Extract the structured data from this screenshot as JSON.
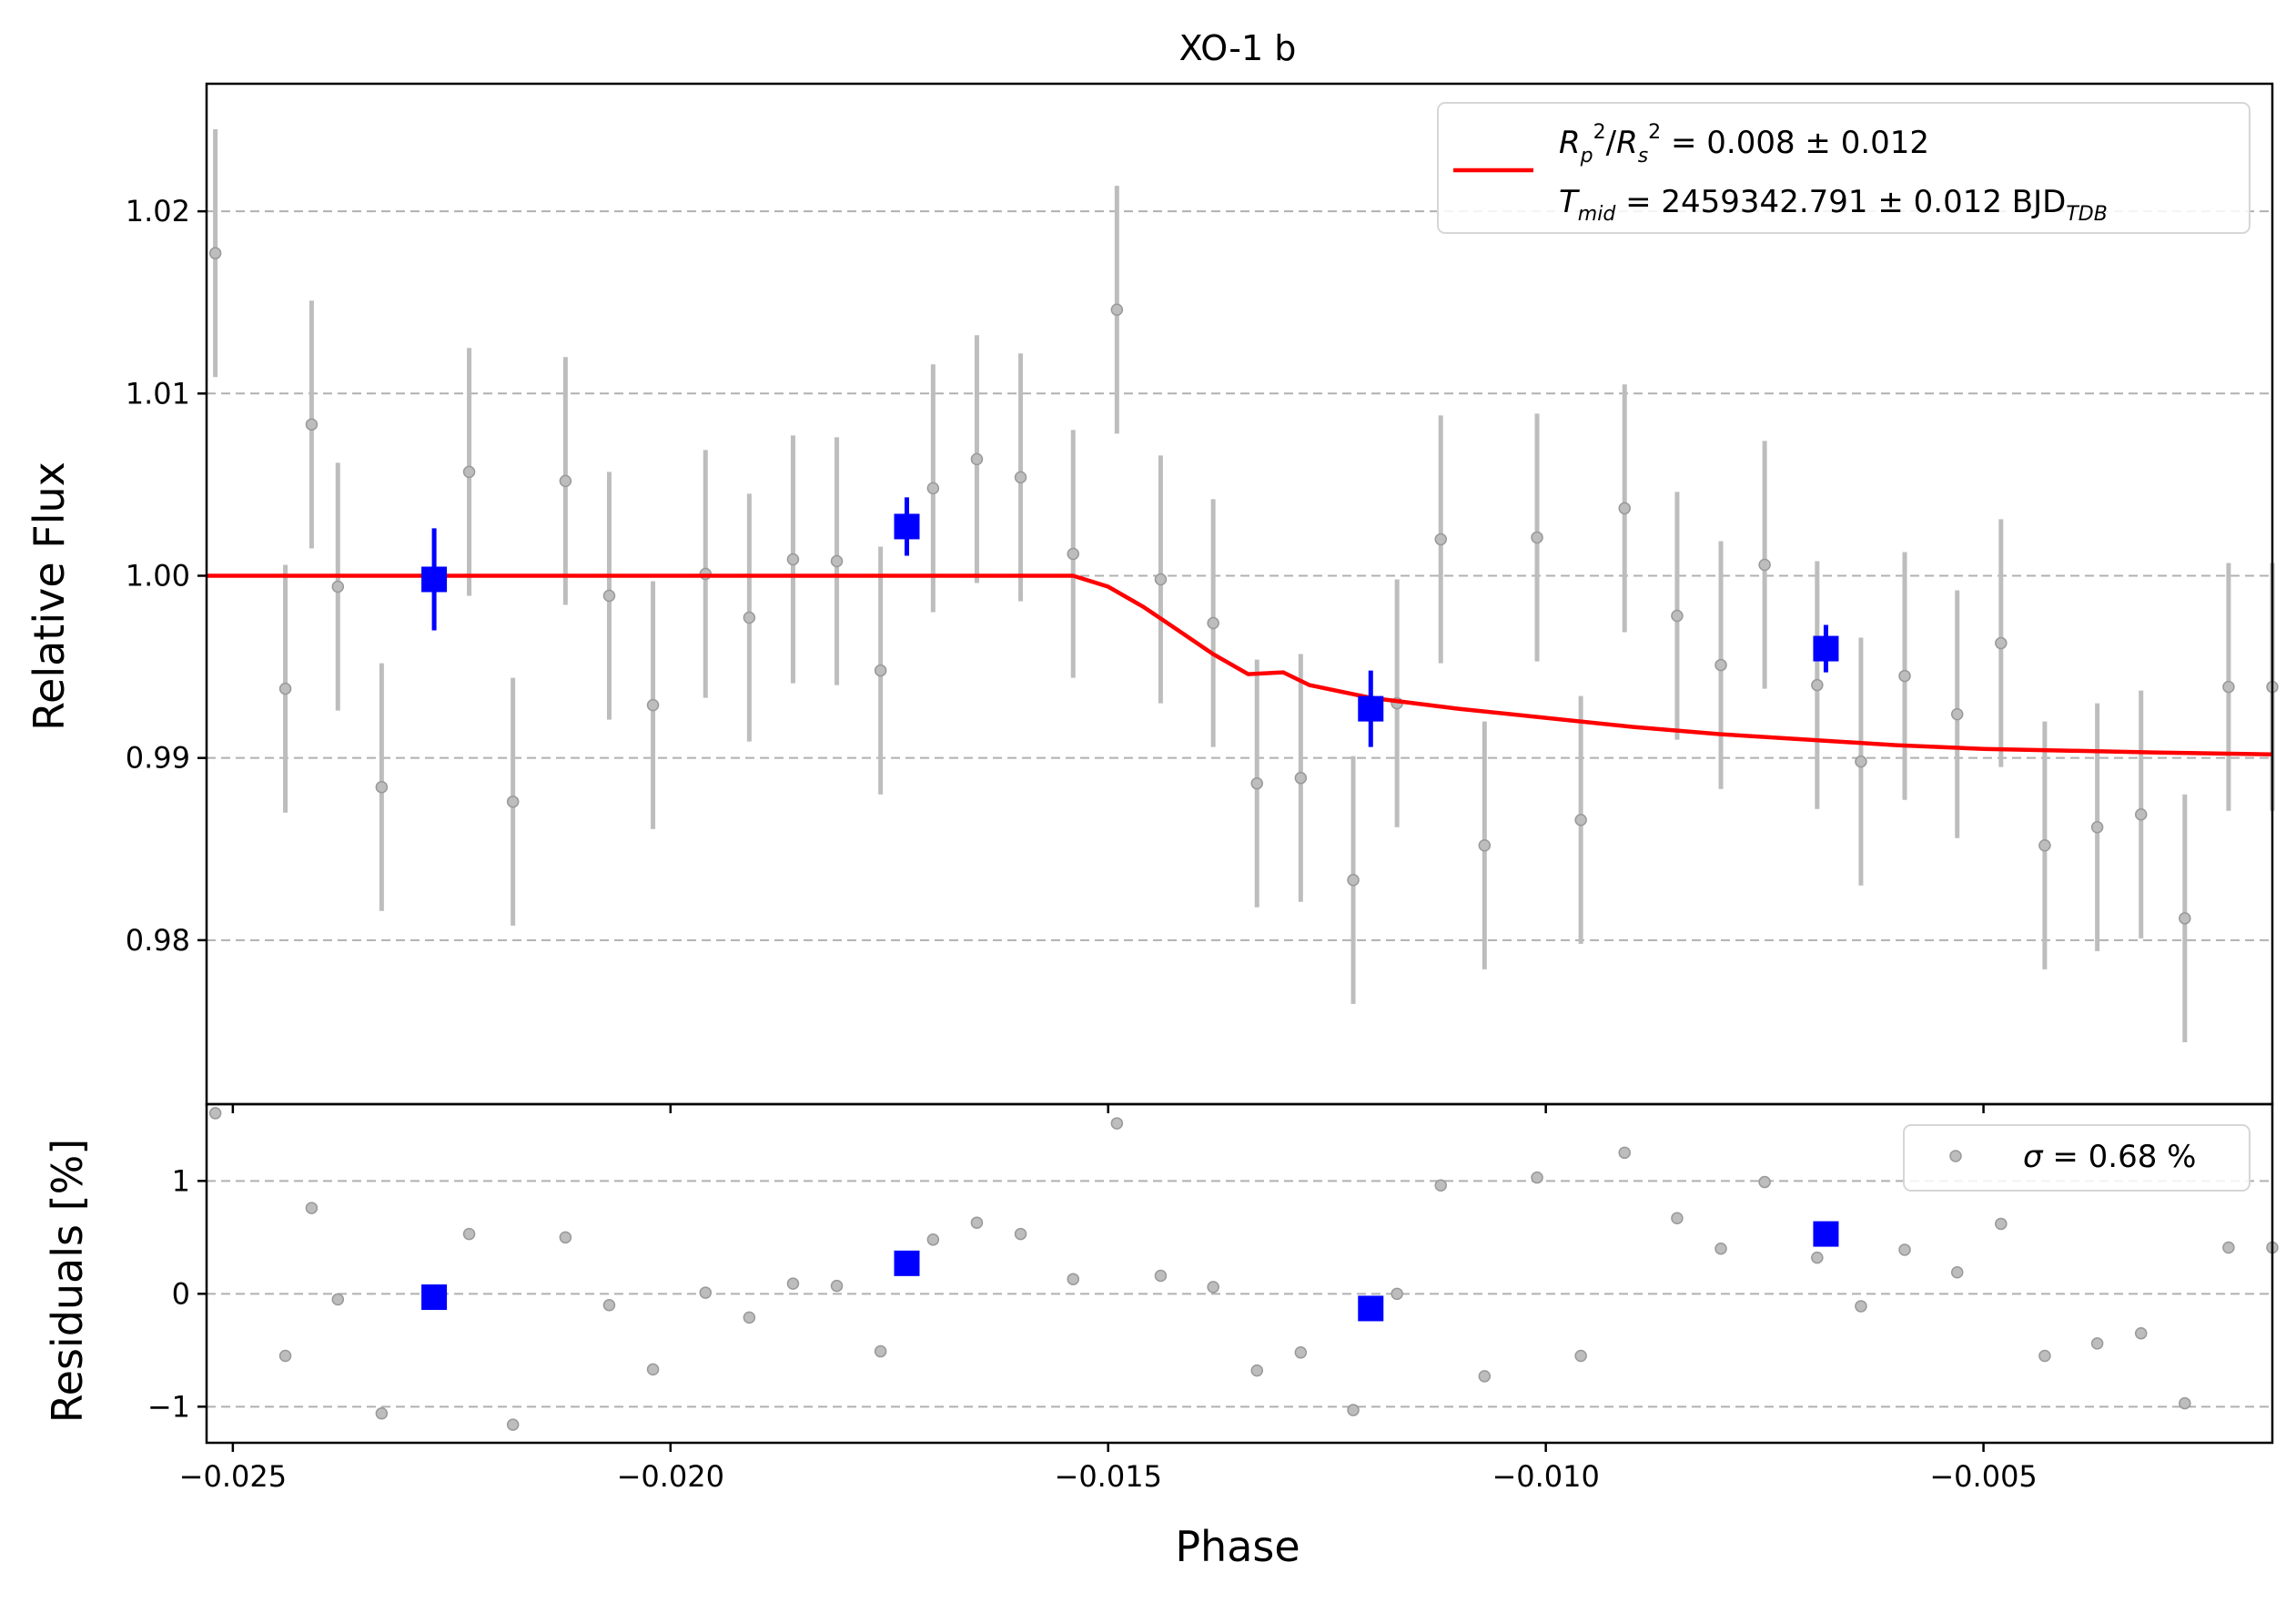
{
  "chart_data": {
    "type": "scatter",
    "title": "XO-1 b",
    "xlabel": "Phase",
    "main_panel": {
      "ylabel": "Relative Flux",
      "xlim": [
        -0.0253,
        -0.0017
      ],
      "ylim": [
        0.971,
        1.027
      ],
      "xticks": [
        -0.025,
        -0.02,
        -0.015,
        -0.01,
        -0.005
      ],
      "xtick_labels": [
        "−0.025",
        "−0.020",
        "−0.015",
        "−0.010",
        "−0.005"
      ],
      "yticks": [
        0.98,
        0.99,
        1.0,
        1.01,
        1.02
      ],
      "ytick_labels": [
        "0.98",
        "0.99",
        "1.00",
        "1.01",
        "1.02"
      ],
      "grid": "horizontal dashed",
      "legend_placement": "top-right",
      "series": [
        {
          "name": "data",
          "style": "gray points with error bars",
          "x": [
            -0.0252,
            -0.0244,
            -0.0241,
            -0.0238,
            -0.0233,
            -0.0223,
            -0.0218,
            -0.0212,
            -0.0207,
            -0.0202,
            -0.0196,
            -0.0191,
            -0.0186,
            -0.0181,
            -0.0176,
            -0.017,
            -0.0165,
            -0.016,
            -0.0154,
            -0.0149,
            -0.0144,
            -0.0138,
            -0.0133,
            -0.0128,
            -0.0122,
            -0.0117,
            -0.0112,
            -0.0107,
            -0.0101,
            -0.0096,
            -0.0091,
            -0.0085,
            -0.008,
            -0.0075,
            -0.0069,
            -0.0064,
            -0.0059,
            -0.0053,
            -0.0048,
            -0.0043,
            -0.0037,
            -0.0032,
            -0.0027,
            -0.0022,
            -0.0017
          ],
          "y": [
            1.0177,
            0.9938,
            1.0083,
            0.9994,
            0.9884,
            1.0057,
            0.9876,
            1.0052,
            0.9989,
            0.9929,
            1.0001,
            0.9977,
            1.0009,
            1.0008,
            0.9948,
            1.0048,
            1.0064,
            1.0054,
            1.0012,
            1.0146,
            0.9998,
            0.9974,
            0.9886,
            0.9889,
            0.9833,
            0.993,
            1.002,
            0.9852,
            1.0021,
            0.9866,
            1.0037,
            0.9978,
            0.9951,
            1.0006,
            0.994,
            0.9898,
            0.9945,
            0.9924,
            0.9963,
            0.9852,
            0.9862,
            0.9869,
            0.9812,
            0.9939,
            0.9939
          ],
          "yerr": [
            0.0068,
            0.0068,
            0.0068,
            0.0068,
            0.0068,
            0.0068,
            0.0068,
            0.0068,
            0.0068,
            0.0068,
            0.0068,
            0.0068,
            0.0068,
            0.0068,
            0.0068,
            0.0068,
            0.0068,
            0.0068,
            0.0068,
            0.0068,
            0.0068,
            0.0068,
            0.0068,
            0.0068,
            0.0068,
            0.0068,
            0.0068,
            0.0068,
            0.0068,
            0.0068,
            0.0068,
            0.0068,
            0.0068,
            0.0068,
            0.0068,
            0.0068,
            0.0068,
            0.0068,
            0.0068,
            0.0068,
            0.0068,
            0.0068,
            0.0068,
            0.0068,
            0.0068
          ]
        },
        {
          "name": "binned",
          "style": "blue squares with error bars",
          "x": [
            -0.0227,
            -0.0173,
            -0.012,
            -0.0068
          ],
          "y": [
            0.9998,
            1.0027,
            0.9927,
            0.996
          ],
          "yerr": [
            0.0028,
            0.0016,
            0.0021,
            0.0013
          ]
        },
        {
          "name": "model",
          "style": "red line",
          "x": [
            -0.0253,
            -0.0154,
            -0.015,
            -0.0146,
            -0.0142,
            -0.0138,
            -0.0134,
            -0.013,
            -0.0127,
            -0.012,
            -0.011,
            -0.01,
            -0.009,
            -0.008,
            -0.007,
            -0.006,
            -0.005,
            -0.004,
            -0.003,
            -0.0017
          ],
          "y": [
            1.0,
            1.0,
            0.9994,
            0.9983,
            0.997,
            0.9957,
            0.9946,
            0.9947,
            0.994,
            0.9933,
            0.9927,
            0.9922,
            0.9917,
            0.9913,
            0.991,
            0.9907,
            0.9905,
            0.9904,
            0.9903,
            0.9902
          ]
        }
      ],
      "legend": {
        "line1": {
          "r": "R",
          "p_sub": "p",
          "sq1": "2",
          "slash": "/",
          "rs": "R",
          "s_sub": "s",
          "sq2": "2",
          "value": " = 0.008 ± 0.012"
        },
        "line2": {
          "t": "T",
          "mid_sub": "mid",
          "value": " = 2459342.791 ± 0.012 BJD",
          "tdb_sub": "TDB"
        }
      }
    },
    "residual_panel": {
      "ylabel": "Residuals [%]",
      "xlim": [
        -0.0253,
        -0.0017
      ],
      "ylim": [
        -1.32,
        1.68
      ],
      "yticks": [
        -1,
        0,
        1
      ],
      "ytick_labels": [
        "−1",
        "0",
        "1"
      ],
      "grid": "horizontal dashed",
      "legend_placement": "top-right",
      "legend": {
        "sigma": "σ",
        "value": " = 0.68 %"
      },
      "series": [
        {
          "name": "residuals",
          "style": "gray points",
          "x": [
            -0.0252,
            -0.0244,
            -0.0241,
            -0.0238,
            -0.0233,
            -0.0223,
            -0.0218,
            -0.0212,
            -0.0207,
            -0.0202,
            -0.0196,
            -0.0191,
            -0.0186,
            -0.0181,
            -0.0176,
            -0.017,
            -0.0165,
            -0.016,
            -0.0154,
            -0.0149,
            -0.0144,
            -0.0138,
            -0.0133,
            -0.0128,
            -0.0122,
            -0.0117,
            -0.0112,
            -0.0107,
            -0.0101,
            -0.0096,
            -0.0091,
            -0.0085,
            -0.008,
            -0.0075,
            -0.0069,
            -0.0064,
            -0.0059,
            -0.0053,
            -0.0048,
            -0.0043,
            -0.0037,
            -0.0032,
            -0.0027,
            -0.0022,
            -0.0017
          ],
          "y": [
            1.6,
            -0.55,
            0.76,
            -0.05,
            -1.06,
            0.53,
            -1.16,
            0.5,
            -0.1,
            -0.67,
            0.01,
            -0.21,
            0.09,
            0.07,
            -0.51,
            0.48,
            0.63,
            0.53,
            0.13,
            1.51,
            0.16,
            0.06,
            -0.68,
            -0.52,
            -1.03,
            0.0,
            0.96,
            -0.73,
            1.03,
            -0.55,
            1.25,
            0.67,
            0.4,
            0.99,
            0.32,
            -0.11,
            0.39,
            0.19,
            0.62,
            -0.55,
            -0.44,
            -0.35,
            -0.97,
            0.41,
            0.41
          ]
        },
        {
          "name": "binned-residuals",
          "style": "blue squares",
          "x": [
            -0.0227,
            -0.0173,
            -0.012,
            -0.0068
          ],
          "y": [
            -0.03,
            0.27,
            -0.13,
            0.53
          ]
        }
      ]
    },
    "colors": {
      "data": "#bdbdbd",
      "data_marker": "#999999",
      "binned": "#0000ff",
      "model": "#ff0000",
      "grid": "#b0b0b0",
      "frame": "#000000"
    }
  }
}
